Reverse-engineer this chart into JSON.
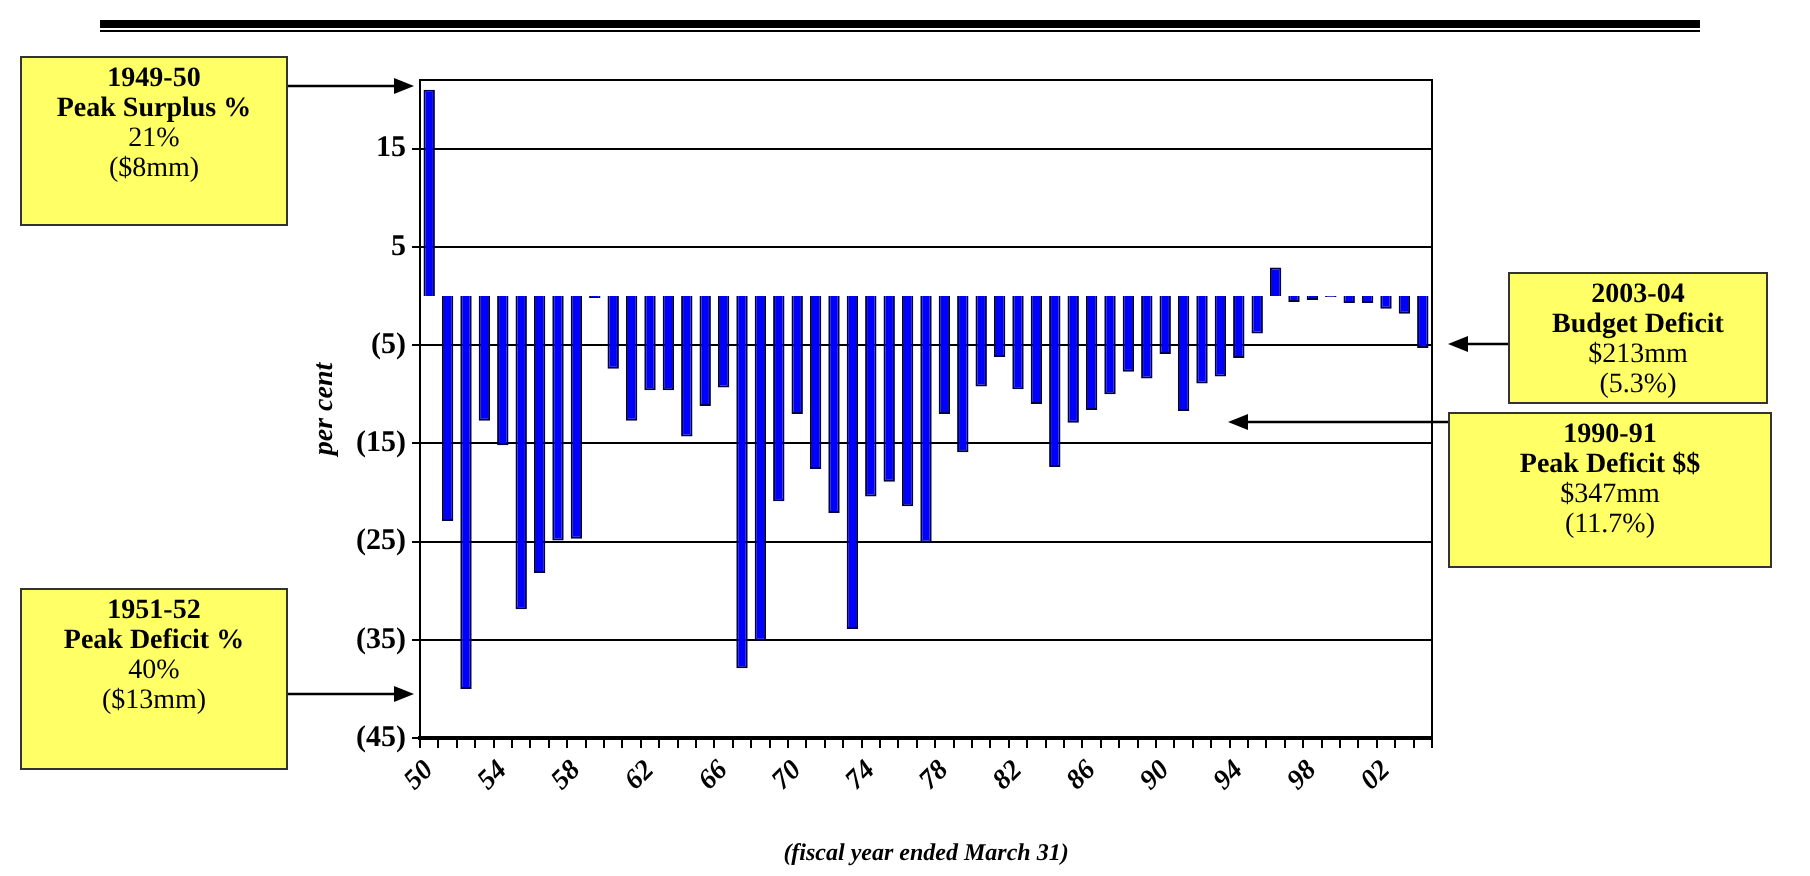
{
  "chart_data": {
    "type": "bar",
    "xlabel": "(fiscal year ended March 31)",
    "ylabel": "per cent",
    "categories": [
      "50",
      null,
      null,
      null,
      "54",
      null,
      null,
      null,
      "58",
      null,
      null,
      null,
      "62",
      null,
      null,
      null,
      "66",
      null,
      null,
      null,
      "70",
      null,
      null,
      null,
      "74",
      null,
      null,
      null,
      "78",
      null,
      null,
      null,
      "82",
      null,
      null,
      null,
      "86",
      null,
      null,
      null,
      "90",
      null,
      null,
      null,
      "94",
      null,
      null,
      null,
      "98",
      null,
      null,
      null,
      "02",
      null,
      null
    ],
    "values": [
      21,
      -22.9,
      -40,
      -12.7,
      -15.2,
      -31.9,
      -28.2,
      -24.9,
      -24.7,
      -0.2,
      -7.4,
      -12.7,
      -9.6,
      -9.6,
      -14.3,
      -11.2,
      -9.3,
      -37.9,
      -35.1,
      -20.9,
      -12,
      -17.6,
      -22.1,
      -33.9,
      -20.4,
      -18.9,
      -21.4,
      -25.1,
      -12,
      -15.9,
      -9.2,
      -6.2,
      -9.5,
      -11,
      -17.4,
      -12.9,
      -11.6,
      -10,
      -7.7,
      -8.4,
      -5.9,
      -11.7,
      -8.9,
      -8.2,
      -6.3,
      -3.8,
      2.9,
      -0.6,
      -0.4,
      -0.1,
      -0.7,
      -0.7,
      -1.3,
      -1.8,
      -5.3
    ],
    "color": "#0000ff",
    "ylim": [
      -45,
      22
    ],
    "yticks": [
      {
        "value": -45,
        "label": "(45)"
      },
      {
        "value": -35,
        "label": "(35)"
      },
      {
        "value": -25,
        "label": "(25)"
      },
      {
        "value": -15,
        "label": "(15)"
      },
      {
        "value": -5,
        "label": "(5)"
      },
      5,
      15
    ],
    "grid": "y",
    "legend": false,
    "annotations": [
      "1949-50\nPeak Surplus %\n21%\n($8mm)",
      "2003-04\nBudget Deficit\n$213mm\n(5.3%)",
      "1990-91\nPeak Deficit $$\n$347mm\n(11.7%)",
      "1951-52\nPeak Deficit %\n40%\n($13mm)"
    ]
  }
}
